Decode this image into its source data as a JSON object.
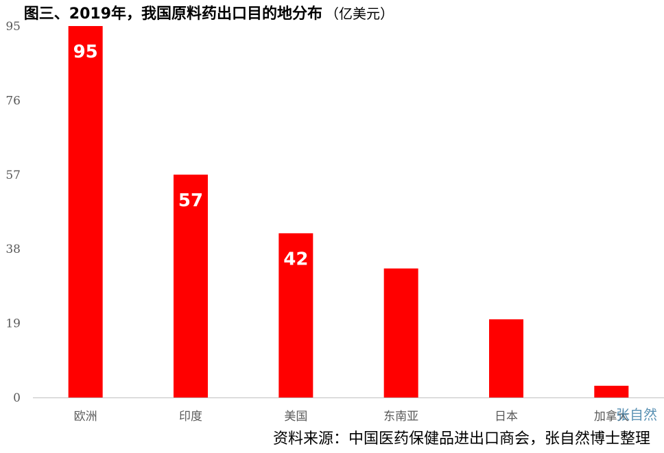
{
  "chart_data": {
    "type": "bar",
    "title": "图三、2019年，我国原料药出口目的地分布",
    "unit": "（亿美元）",
    "categories": [
      "欧洲",
      "印度",
      "美国",
      "东南亚",
      "日本",
      "加拿大"
    ],
    "values": [
      95,
      57,
      42,
      33,
      20,
      3
    ],
    "data_labels": [
      "95",
      "57",
      "42",
      "",
      "",
      ""
    ],
    "ylim": [
      0,
      95
    ],
    "yticks": [
      "0",
      "19",
      "38",
      "57",
      "76",
      "95"
    ],
    "grid": false,
    "legend": "none",
    "bar_color": "#ff0000",
    "axis_color": "#bfbfbf"
  },
  "source": "资料来源：中国医药保健品进出口商会，张自然博士整理",
  "watermark": "张自然"
}
